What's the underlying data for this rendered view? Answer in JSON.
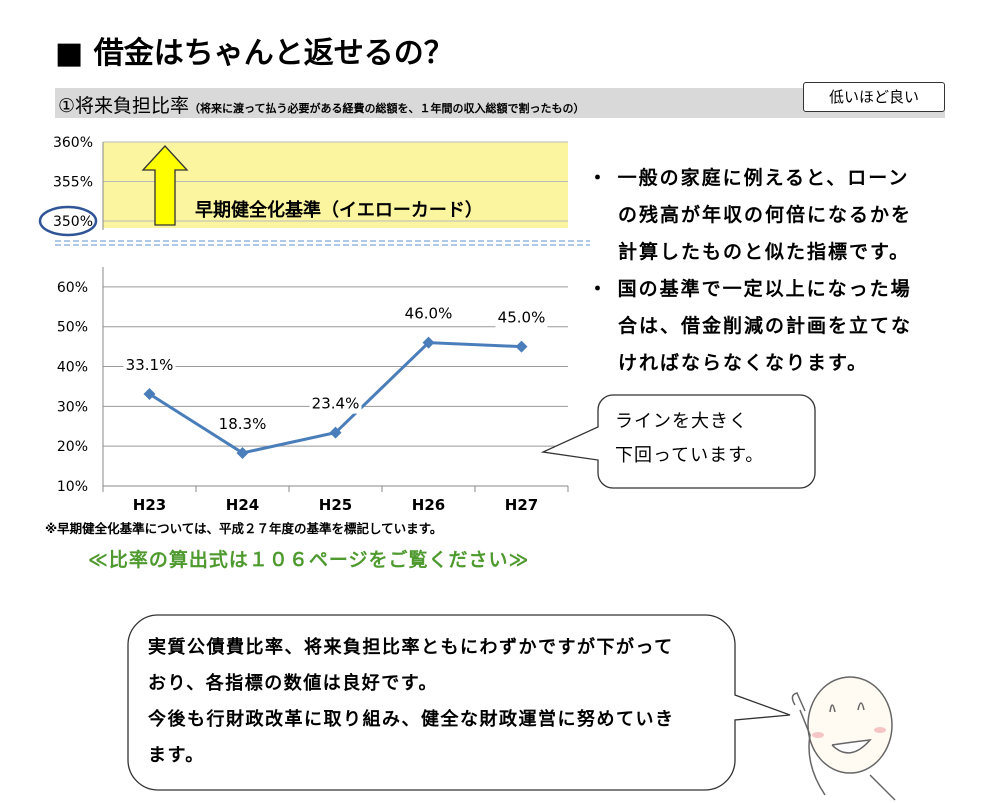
{
  "heading": "■ 借金はちゃんと返せるの？",
  "section": {
    "title": "①将来負担比率",
    "note": "（将来に渡って払う必要がある経費の総額を、１年間の収入総額で割ったもの）",
    "badge": "低いほど良い"
  },
  "chart_data": {
    "type": "line",
    "categories": [
      "H23",
      "H24",
      "H25",
      "H26",
      "H27"
    ],
    "values": [
      33.1,
      18.3,
      23.4,
      46.0,
      45.0
    ],
    "value_labels": [
      "33.1%",
      "18.3%",
      "23.4%",
      "46.0%",
      "45.0%"
    ],
    "color": "#4a7ebb",
    "ylim": [
      10,
      65
    ],
    "yticks": [
      {
        "value": 10,
        "label": "10%"
      },
      {
        "value": 20,
        "label": "20%"
      },
      {
        "value": 30,
        "label": "30%"
      },
      {
        "value": 40,
        "label": "40%"
      },
      {
        "value": 50,
        "label": "50%"
      },
      {
        "value": 60,
        "label": "60%"
      }
    ],
    "grid": true,
    "upper_axis": {
      "ylim": [
        350,
        360
      ],
      "yticks": [
        {
          "value": 350,
          "label": "350%"
        },
        {
          "value": 355,
          "label": "355%"
        },
        {
          "value": 360,
          "label": "360%"
        }
      ],
      "threshold": 350,
      "threshold_label": "早期健全化基準（イエローカード）",
      "color": "#fbf5a0"
    }
  },
  "footnote": "※早期健全化基準については、平成２７年度の基準を標記しています。",
  "reference": "≪比率の算出式は１０６ページをご覧ください≫",
  "bullets": [
    [
      "・ 一般の家庭に例えると、ローン",
      "の残高が年収の何倍になるかを",
      "計算したものと似た指標です。"
    ],
    [
      "・ 国の基準で一定以上になった場",
      "合は、借金削減の計画を立てな",
      "ければならなくなります。"
    ]
  ],
  "callout": [
    "ラインを大きく",
    "下回っています。"
  ],
  "summary": [
    "実質公債費比率、将来負担比率ともにわずかですが下がって",
    "おり、各指標の数値は良好です。",
    "今後も行財政改革に取り組み、健全な財政運営に努めていき",
    "ます。"
  ]
}
